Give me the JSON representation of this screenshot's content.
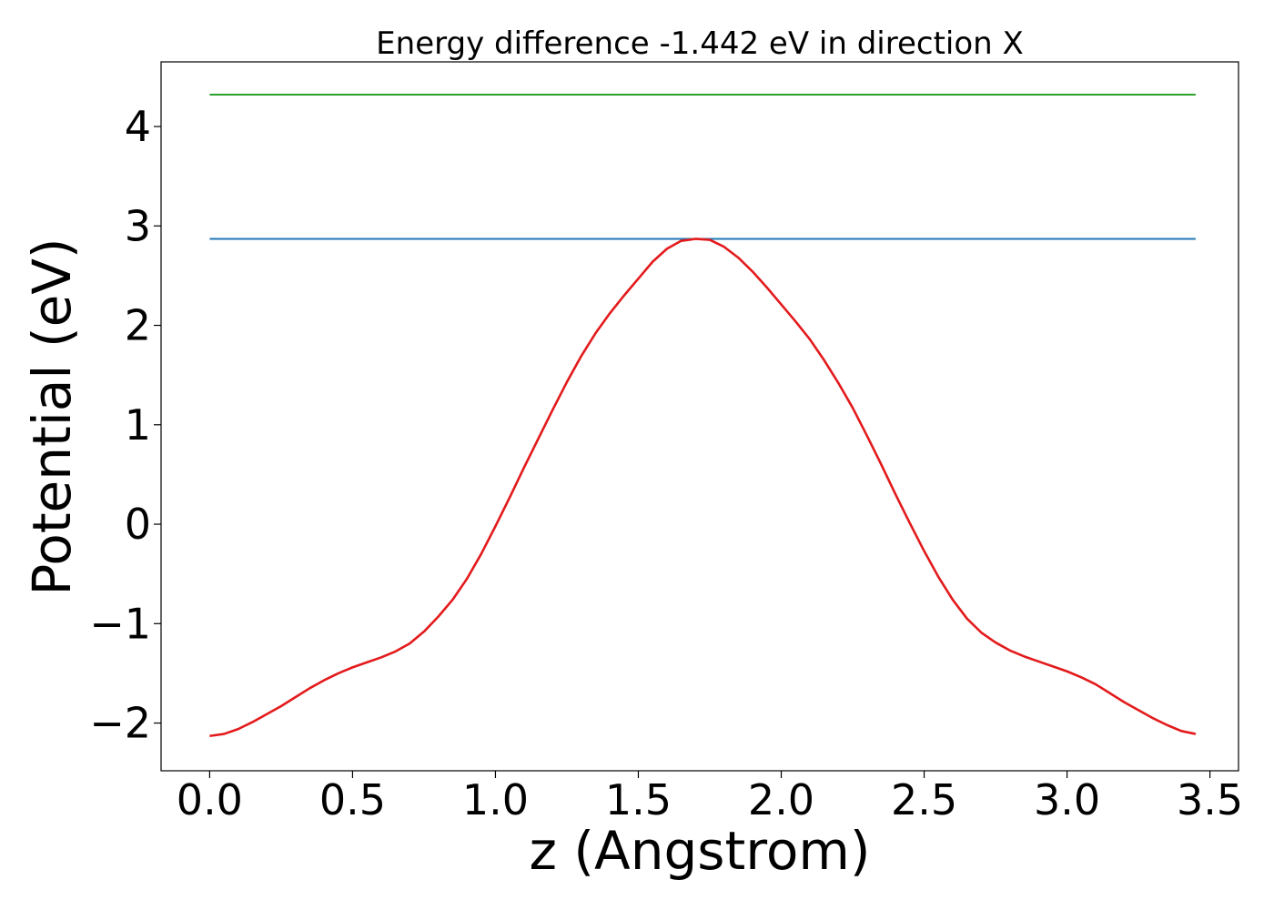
{
  "chart_data": {
    "type": "line",
    "title": "Energy difference -1.442 eV in direction X",
    "xlabel": "z (Angstrom)",
    "ylabel": "Potential (eV)",
    "xlim": [
      -0.17,
      3.6
    ],
    "ylim": [
      -2.48,
      4.65
    ],
    "xticks": [
      0.0,
      0.5,
      1.0,
      1.5,
      2.0,
      2.5,
      3.0,
      3.5
    ],
    "xtick_labels": [
      "0.0",
      "0.5",
      "1.0",
      "1.5",
      "2.0",
      "2.5",
      "3.0",
      "3.5"
    ],
    "yticks": [
      -2,
      -1,
      0,
      1,
      2,
      3,
      4
    ],
    "ytick_labels": [
      "−2",
      "−1",
      "0",
      "1",
      "2",
      "3",
      "4"
    ],
    "grid": false,
    "legend": "none",
    "series": [
      {
        "color": "#2ca02c",
        "x": [
          0.0,
          3.45
        ],
        "y": [
          4.32,
          4.32
        ]
      },
      {
        "color": "#1f77b4",
        "x": [
          0.0,
          3.45
        ],
        "y": [
          2.87,
          2.87
        ]
      },
      {
        "color": "#e31a1c",
        "x": [
          0.0,
          0.05,
          0.1,
          0.15,
          0.2,
          0.25,
          0.3,
          0.35,
          0.4,
          0.45,
          0.5,
          0.55,
          0.6,
          0.65,
          0.7,
          0.75,
          0.8,
          0.85,
          0.9,
          0.95,
          1.0,
          1.05,
          1.1,
          1.15,
          1.2,
          1.25,
          1.3,
          1.35,
          1.4,
          1.45,
          1.5,
          1.55,
          1.6,
          1.65,
          1.7,
          1.75,
          1.8,
          1.85,
          1.9,
          1.95,
          2.0,
          2.05,
          2.1,
          2.15,
          2.2,
          2.25,
          2.3,
          2.35,
          2.4,
          2.45,
          2.5,
          2.55,
          2.6,
          2.65,
          2.7,
          2.75,
          2.8,
          2.85,
          2.9,
          2.95,
          3.0,
          3.05,
          3.1,
          3.15,
          3.2,
          3.25,
          3.3,
          3.35,
          3.4,
          3.45
        ],
        "y": [
          -2.13,
          -2.11,
          -2.06,
          -1.99,
          -1.91,
          -1.83,
          -1.74,
          -1.65,
          -1.57,
          -1.5,
          -1.44,
          -1.39,
          -1.34,
          -1.28,
          -1.2,
          -1.08,
          -0.93,
          -0.76,
          -0.55,
          -0.3,
          -0.02,
          0.27,
          0.57,
          0.86,
          1.15,
          1.43,
          1.69,
          1.92,
          2.12,
          2.3,
          2.47,
          2.64,
          2.77,
          2.85,
          2.87,
          2.86,
          2.79,
          2.68,
          2.54,
          2.38,
          2.21,
          2.04,
          1.86,
          1.65,
          1.42,
          1.17,
          0.89,
          0.6,
          0.3,
          0.01,
          -0.27,
          -0.53,
          -0.76,
          -0.95,
          -1.09,
          -1.19,
          -1.27,
          -1.33,
          -1.38,
          -1.43,
          -1.48,
          -1.54,
          -1.61,
          -1.7,
          -1.79,
          -1.87,
          -1.95,
          -2.02,
          -2.08,
          -2.11
        ]
      }
    ]
  }
}
